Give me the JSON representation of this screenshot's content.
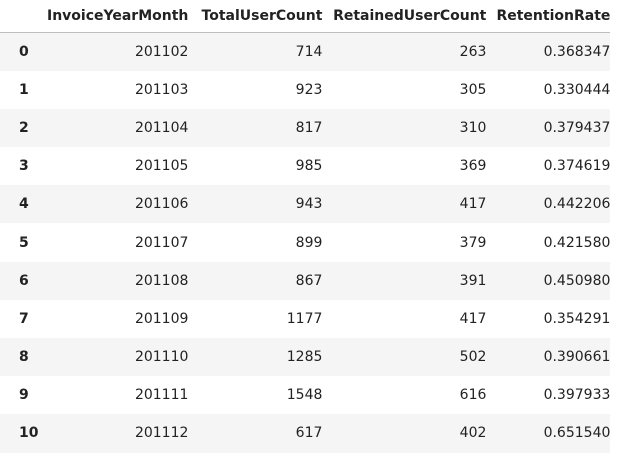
{
  "table": {
    "columns": [
      "InvoiceYearMonth",
      "TotalUserCount",
      "RetainedUserCount",
      "RetentionRate"
    ],
    "rows": [
      {
        "index": "0",
        "InvoiceYearMonth": "201102",
        "TotalUserCount": "714",
        "RetainedUserCount": "263",
        "RetentionRate": "0.368347"
      },
      {
        "index": "1",
        "InvoiceYearMonth": "201103",
        "TotalUserCount": "923",
        "RetainedUserCount": "305",
        "RetentionRate": "0.330444"
      },
      {
        "index": "2",
        "InvoiceYearMonth": "201104",
        "TotalUserCount": "817",
        "RetainedUserCount": "310",
        "RetentionRate": "0.379437"
      },
      {
        "index": "3",
        "InvoiceYearMonth": "201105",
        "TotalUserCount": "985",
        "RetainedUserCount": "369",
        "RetentionRate": "0.374619"
      },
      {
        "index": "4",
        "InvoiceYearMonth": "201106",
        "TotalUserCount": "943",
        "RetainedUserCount": "417",
        "RetentionRate": "0.442206"
      },
      {
        "index": "5",
        "InvoiceYearMonth": "201107",
        "TotalUserCount": "899",
        "RetainedUserCount": "379",
        "RetentionRate": "0.421580"
      },
      {
        "index": "6",
        "InvoiceYearMonth": "201108",
        "TotalUserCount": "867",
        "RetainedUserCount": "391",
        "RetentionRate": "0.450980"
      },
      {
        "index": "7",
        "InvoiceYearMonth": "201109",
        "TotalUserCount": "1177",
        "RetainedUserCount": "417",
        "RetentionRate": "0.354291"
      },
      {
        "index": "8",
        "InvoiceYearMonth": "201110",
        "TotalUserCount": "1285",
        "RetainedUserCount": "502",
        "RetentionRate": "0.390661"
      },
      {
        "index": "9",
        "InvoiceYearMonth": "201111",
        "TotalUserCount": "1548",
        "RetainedUserCount": "616",
        "RetentionRate": "0.397933"
      },
      {
        "index": "10",
        "InvoiceYearMonth": "201112",
        "TotalUserCount": "617",
        "RetainedUserCount": "402",
        "RetentionRate": "0.651540"
      }
    ]
  }
}
